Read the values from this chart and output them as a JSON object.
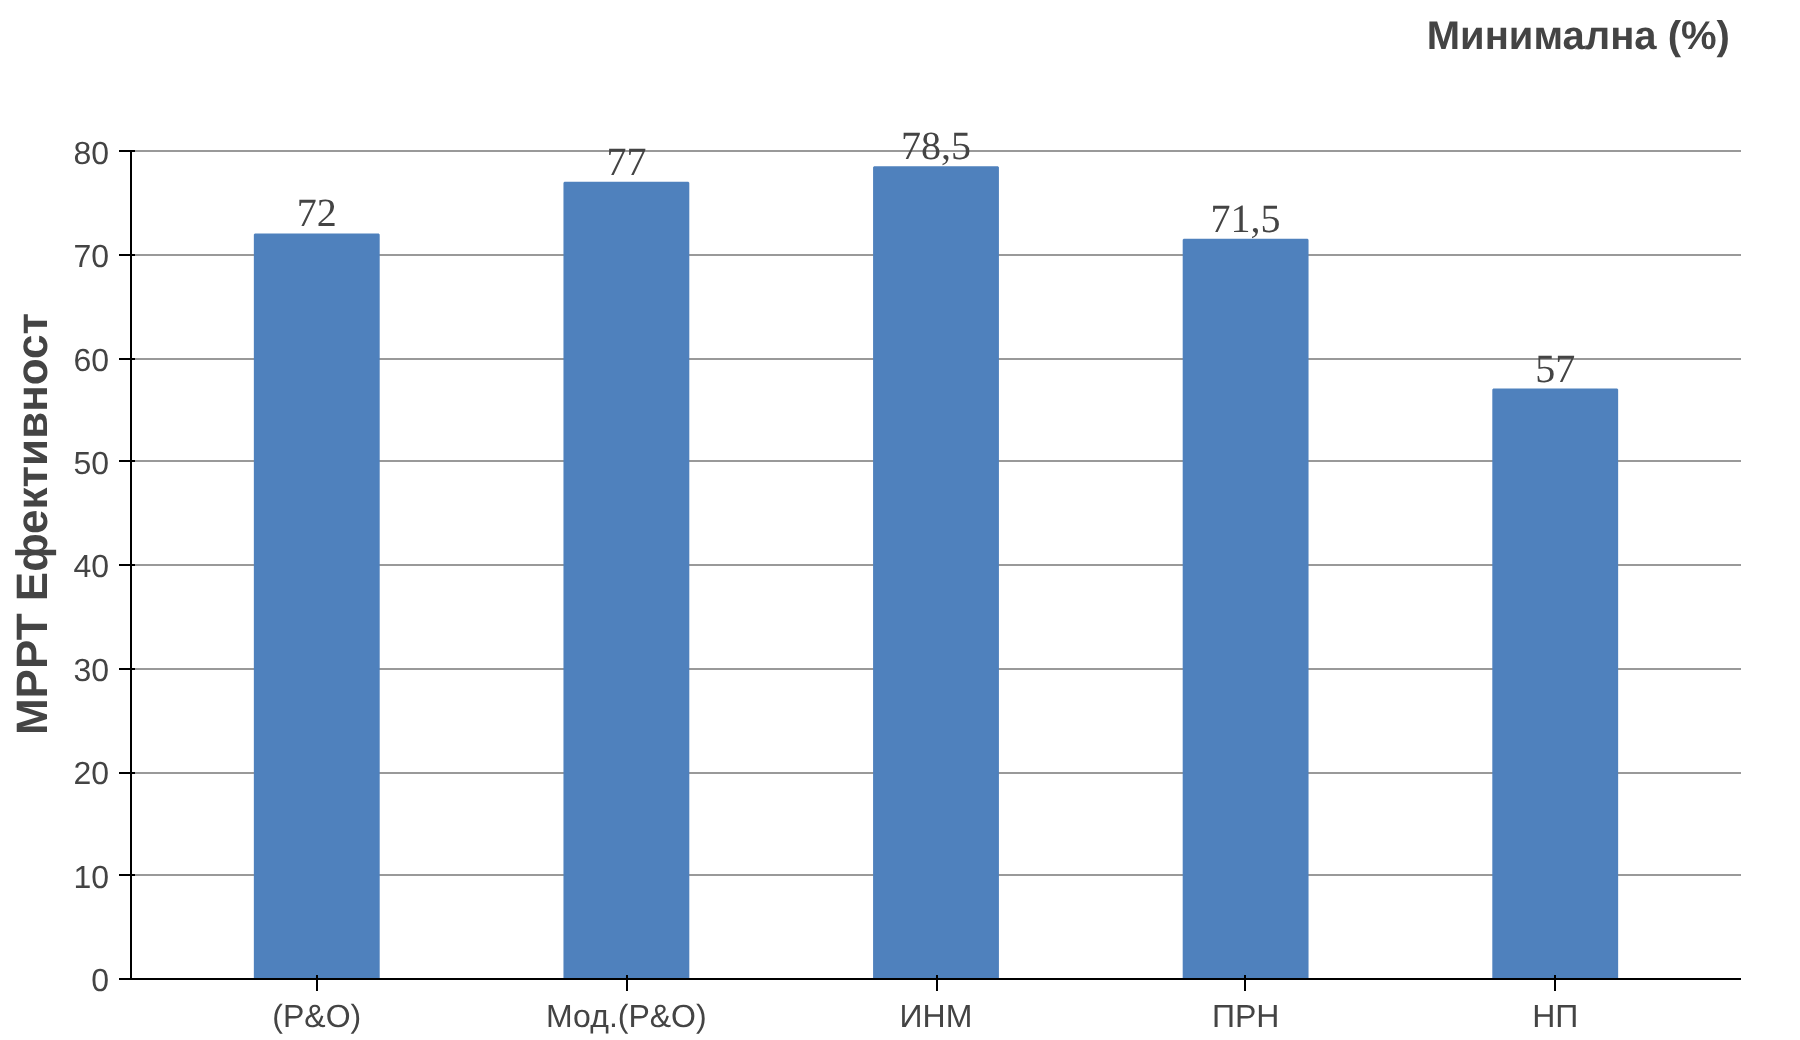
{
  "chart_data": {
    "type": "bar",
    "title": "Минимална  (%)",
    "ylabel": "МРРТ Ефективност",
    "categories": [
      "(P&O)",
      "Мод.(P&O)",
      "ИНМ",
      "ПРН",
      "НП"
    ],
    "values": [
      72,
      77,
      78.5,
      71.5,
      57
    ],
    "value_labels": [
      "72",
      "77",
      "78,5",
      "71,5",
      "57"
    ],
    "color": "#4f81bd",
    "ylim": [
      0,
      80
    ],
    "yticks": [
      0,
      10,
      20,
      30,
      40,
      50,
      60,
      70,
      80
    ],
    "grid": "y"
  }
}
